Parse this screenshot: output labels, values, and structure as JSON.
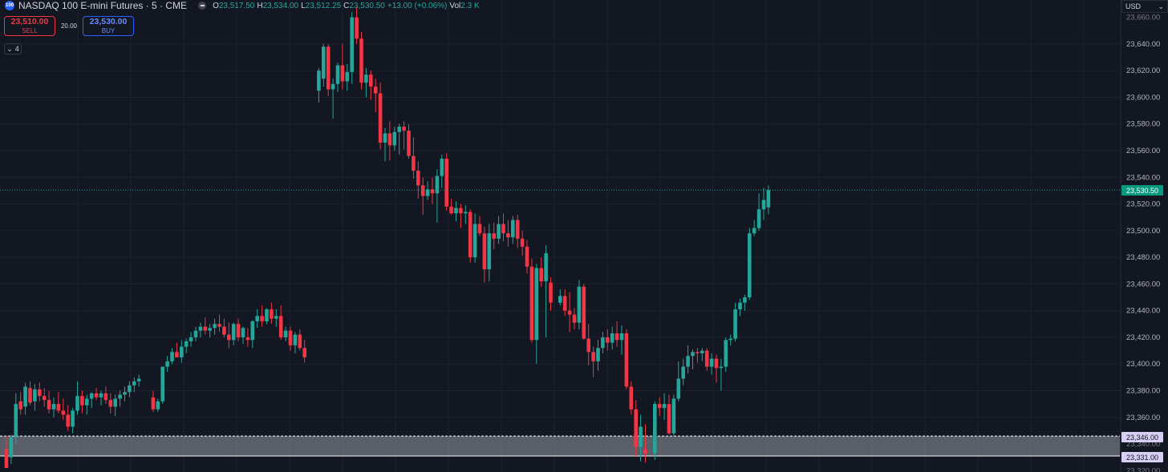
{
  "header": {
    "symbol_badge": "100",
    "title": "NASDAQ 100 E-mini Futures · 5 · CME",
    "ohlc": [
      {
        "k": "O",
        "v": "23,517.50"
      },
      {
        "k": "H",
        "v": "23,534.00"
      },
      {
        "k": "L",
        "v": "23,512.25"
      },
      {
        "k": "C",
        "v": "23,530.50"
      },
      {
        "k": "",
        "v": "+13.00 (+0.06%)"
      },
      {
        "k": "Vol",
        "v": "2.3 K"
      }
    ]
  },
  "trade": {
    "sell_price": "23,510.00",
    "sell_label": "SELL",
    "spread": "20.00",
    "buy_price": "23,530.00",
    "buy_label": "BUY"
  },
  "indicators_toggle": "4",
  "currency": "USD",
  "price_tags": {
    "last": "23,530.50",
    "level_a": "23,346.00",
    "level_b": "23,331.00"
  },
  "colors": {
    "background": "#131722",
    "up": "#26a69a",
    "down": "#f23645",
    "grid": "#1e222d",
    "zone": "#b2b5be"
  },
  "chart_data": {
    "type": "candlestick",
    "y_axis": {
      "ticks": [
        23640,
        23620,
        23600,
        23580,
        23560,
        23540,
        23520,
        23500,
        23480,
        23460,
        23440,
        23420,
        23400,
        23380,
        23360
      ],
      "tick_labels": [
        "23,640.00",
        "23,620.00",
        "23,600.00",
        "23,580.00",
        "23,560.00",
        "23,540.00",
        "23,520.00",
        "23,500.00",
        "23,480.00",
        "23,460.00",
        "23,440.00",
        "23,420.00",
        "23,400.00",
        "23,380.00",
        "23,360.00"
      ],
      "partial_labels": [
        "23,660.00",
        "23,340.00",
        "23,320.00"
      ],
      "range": [
        23319,
        23673
      ]
    },
    "last_price": 23530.5,
    "zone": {
      "from": 23331,
      "to": 23346
    },
    "candles": [
      {
        "o": 23336,
        "h": 23346,
        "l": 23322,
        "c": 23322
      },
      {
        "o": 23330,
        "h": 23347,
        "l": 23325,
        "c": 23345
      },
      {
        "o": 23345,
        "h": 23378,
        "l": 23340,
        "c": 23370
      },
      {
        "o": 23372,
        "h": 23379,
        "l": 23362,
        "c": 23366
      },
      {
        "o": 23368,
        "h": 23386,
        "l": 23362,
        "c": 23383
      },
      {
        "o": 23382,
        "h": 23387,
        "l": 23369,
        "c": 23371
      },
      {
        "o": 23372,
        "h": 23385,
        "l": 23365,
        "c": 23381
      },
      {
        "o": 23381,
        "h": 23386,
        "l": 23372,
        "c": 23376
      },
      {
        "o": 23376,
        "h": 23382,
        "l": 23368,
        "c": 23373
      },
      {
        "o": 23373,
        "h": 23380,
        "l": 23363,
        "c": 23366
      },
      {
        "o": 23366,
        "h": 23375,
        "l": 23360,
        "c": 23370
      },
      {
        "o": 23370,
        "h": 23379,
        "l": 23363,
        "c": 23365
      },
      {
        "o": 23365,
        "h": 23374,
        "l": 23358,
        "c": 23362
      },
      {
        "o": 23362,
        "h": 23369,
        "l": 23350,
        "c": 23353
      },
      {
        "o": 23353,
        "h": 23367,
        "l": 23348,
        "c": 23365
      },
      {
        "o": 23365,
        "h": 23387,
        "l": 23362,
        "c": 23376
      },
      {
        "o": 23376,
        "h": 23380,
        "l": 23363,
        "c": 23369
      },
      {
        "o": 23369,
        "h": 23377,
        "l": 23362,
        "c": 23374
      },
      {
        "o": 23374,
        "h": 23379,
        "l": 23367,
        "c": 23378
      },
      {
        "o": 23378,
        "h": 23382,
        "l": 23373,
        "c": 23375
      },
      {
        "o": 23375,
        "h": 23380,
        "l": 23369,
        "c": 23378
      },
      {
        "o": 23378,
        "h": 23383,
        "l": 23370,
        "c": 23373
      },
      {
        "o": 23373,
        "h": 23378,
        "l": 23363,
        "c": 23368
      },
      {
        "o": 23368,
        "h": 23377,
        "l": 23361,
        "c": 23374
      },
      {
        "o": 23374,
        "h": 23380,
        "l": 23368,
        "c": 23377
      },
      {
        "o": 23377,
        "h": 23383,
        "l": 23372,
        "c": 23379
      },
      {
        "o": 23379,
        "h": 23387,
        "l": 23375,
        "c": 23384
      },
      {
        "o": 23384,
        "h": 23390,
        "l": 23379,
        "c": 23387
      },
      {
        "o": 23387,
        "h": 23392,
        "l": 23383,
        "c": 23389
      },
      {
        "o": 23375,
        "h": 23380,
        "l": 23364,
        "c": 23366
      },
      {
        "o": 23366,
        "h": 23374,
        "l": 23364,
        "c": 23372
      },
      {
        "o": 23372,
        "h": 23398,
        "l": 23370,
        "c": 23398
      },
      {
        "o": 23398,
        "h": 23406,
        "l": 23394,
        "c": 23402
      },
      {
        "o": 23402,
        "h": 23412,
        "l": 23400,
        "c": 23409
      },
      {
        "o": 23409,
        "h": 23416,
        "l": 23405,
        "c": 23405
      },
      {
        "o": 23405,
        "h": 23418,
        "l": 23401,
        "c": 23413
      },
      {
        "o": 23413,
        "h": 23419,
        "l": 23408,
        "c": 23417
      },
      {
        "o": 23417,
        "h": 23424,
        "l": 23413,
        "c": 23420
      },
      {
        "o": 23420,
        "h": 23428,
        "l": 23417,
        "c": 23425
      },
      {
        "o": 23425,
        "h": 23431,
        "l": 23420,
        "c": 23428
      },
      {
        "o": 23428,
        "h": 23435,
        "l": 23422,
        "c": 23425
      },
      {
        "o": 23425,
        "h": 23430,
        "l": 23420,
        "c": 23427
      },
      {
        "o": 23427,
        "h": 23434,
        "l": 23422,
        "c": 23430
      },
      {
        "o": 23430,
        "h": 23437,
        "l": 23424,
        "c": 23428
      },
      {
        "o": 23428,
        "h": 23434,
        "l": 23420,
        "c": 23422
      },
      {
        "o": 23422,
        "h": 23431,
        "l": 23412,
        "c": 23418
      },
      {
        "o": 23418,
        "h": 23431,
        "l": 23414,
        "c": 23430
      },
      {
        "o": 23430,
        "h": 23434,
        "l": 23417,
        "c": 23420
      },
      {
        "o": 23420,
        "h": 23428,
        "l": 23415,
        "c": 23427
      },
      {
        "o": 23420,
        "h": 23427,
        "l": 23413,
        "c": 23418
      },
      {
        "o": 23418,
        "h": 23433,
        "l": 23412,
        "c": 23432
      },
      {
        "o": 23432,
        "h": 23441,
        "l": 23427,
        "c": 23436
      },
      {
        "o": 23436,
        "h": 23444,
        "l": 23428,
        "c": 23432
      },
      {
        "o": 23432,
        "h": 23442,
        "l": 23430,
        "c": 23441
      },
      {
        "o": 23441,
        "h": 23446,
        "l": 23430,
        "c": 23434
      },
      {
        "o": 23434,
        "h": 23441,
        "l": 23428,
        "c": 23436
      },
      {
        "o": 23436,
        "h": 23444,
        "l": 23418,
        "c": 23420
      },
      {
        "o": 23420,
        "h": 23428,
        "l": 23417,
        "c": 23425
      },
      {
        "o": 23425,
        "h": 23428,
        "l": 23410,
        "c": 23414
      },
      {
        "o": 23414,
        "h": 23424,
        "l": 23408,
        "c": 23422
      },
      {
        "o": 23422,
        "h": 23426,
        "l": 23410,
        "c": 23412
      },
      {
        "o": 23412,
        "h": 23418,
        "l": 23401,
        "c": 23405
      },
      {
        "o": 23605,
        "h": 23622,
        "l": 23596,
        "c": 23620
      },
      {
        "o": 23614,
        "h": 23640,
        "l": 23608,
        "c": 23638
      },
      {
        "o": 23638,
        "h": 23640,
        "l": 23601,
        "c": 23606
      },
      {
        "o": 23606,
        "h": 23614,
        "l": 23584,
        "c": 23610
      },
      {
        "o": 23610,
        "h": 23626,
        "l": 23604,
        "c": 23624
      },
      {
        "o": 23624,
        "h": 23640,
        "l": 23606,
        "c": 23612
      },
      {
        "o": 23612,
        "h": 23625,
        "l": 23605,
        "c": 23619
      },
      {
        "o": 23619,
        "h": 23664,
        "l": 23610,
        "c": 23660
      },
      {
        "o": 23660,
        "h": 23668,
        "l": 23640,
        "c": 23644
      },
      {
        "o": 23644,
        "h": 23649,
        "l": 23606,
        "c": 23611
      },
      {
        "o": 23611,
        "h": 23622,
        "l": 23600,
        "c": 23617
      },
      {
        "o": 23617,
        "h": 23620,
        "l": 23598,
        "c": 23608
      },
      {
        "o": 23608,
        "h": 23614,
        "l": 23589,
        "c": 23603
      },
      {
        "o": 23603,
        "h": 23611,
        "l": 23561,
        "c": 23566
      },
      {
        "o": 23566,
        "h": 23577,
        "l": 23552,
        "c": 23573
      },
      {
        "o": 23573,
        "h": 23582,
        "l": 23553,
        "c": 23564
      },
      {
        "o": 23564,
        "h": 23578,
        "l": 23560,
        "c": 23574
      },
      {
        "o": 23574,
        "h": 23580,
        "l": 23557,
        "c": 23578
      },
      {
        "o": 23578,
        "h": 23582,
        "l": 23561,
        "c": 23575
      },
      {
        "o": 23575,
        "h": 23580,
        "l": 23554,
        "c": 23556
      },
      {
        "o": 23556,
        "h": 23570,
        "l": 23539,
        "c": 23545
      },
      {
        "o": 23545,
        "h": 23552,
        "l": 23524,
        "c": 23534
      },
      {
        "o": 23534,
        "h": 23540,
        "l": 23512,
        "c": 23526
      },
      {
        "o": 23526,
        "h": 23537,
        "l": 23523,
        "c": 23531
      },
      {
        "o": 23531,
        "h": 23540,
        "l": 23520,
        "c": 23528
      },
      {
        "o": 23528,
        "h": 23546,
        "l": 23506,
        "c": 23541
      },
      {
        "o": 23541,
        "h": 23557,
        "l": 23532,
        "c": 23554
      },
      {
        "o": 23554,
        "h": 23558,
        "l": 23515,
        "c": 23518
      },
      {
        "o": 23518,
        "h": 23524,
        "l": 23512,
        "c": 23513
      },
      {
        "o": 23513,
        "h": 23522,
        "l": 23507,
        "c": 23517
      },
      {
        "o": 23517,
        "h": 23520,
        "l": 23502,
        "c": 23513
      },
      {
        "o": 23513,
        "h": 23519,
        "l": 23505,
        "c": 23514
      },
      {
        "o": 23514,
        "h": 23516,
        "l": 23476,
        "c": 23480
      },
      {
        "o": 23480,
        "h": 23513,
        "l": 23476,
        "c": 23505
      },
      {
        "o": 23505,
        "h": 23511,
        "l": 23496,
        "c": 23498
      },
      {
        "o": 23498,
        "h": 23503,
        "l": 23461,
        "c": 23471
      },
      {
        "o": 23471,
        "h": 23505,
        "l": 23462,
        "c": 23498
      },
      {
        "o": 23498,
        "h": 23506,
        "l": 23486,
        "c": 23494
      },
      {
        "o": 23494,
        "h": 23511,
        "l": 23490,
        "c": 23505
      },
      {
        "o": 23505,
        "h": 23513,
        "l": 23492,
        "c": 23498
      },
      {
        "o": 23498,
        "h": 23508,
        "l": 23488,
        "c": 23495
      },
      {
        "o": 23495,
        "h": 23511,
        "l": 23490,
        "c": 23508
      },
      {
        "o": 23508,
        "h": 23512,
        "l": 23487,
        "c": 23494
      },
      {
        "o": 23494,
        "h": 23500,
        "l": 23481,
        "c": 23488
      },
      {
        "o": 23488,
        "h": 23493,
        "l": 23468,
        "c": 23473
      },
      {
        "o": 23473,
        "h": 23479,
        "l": 23416,
        "c": 23418
      },
      {
        "o": 23418,
        "h": 23475,
        "l": 23400,
        "c": 23472
      },
      {
        "o": 23472,
        "h": 23480,
        "l": 23458,
        "c": 23462
      },
      {
        "o": 23462,
        "h": 23489,
        "l": 23420,
        "c": 23483
      },
      {
        "o": 23461,
        "h": 23465,
        "l": 23440,
        "c": 23446
      },
      {
        "o": 23446,
        "h": 23456,
        "l": 23444,
        "c": 23451
      },
      {
        "o": 23451,
        "h": 23456,
        "l": 23436,
        "c": 23440
      },
      {
        "o": 23440,
        "h": 23454,
        "l": 23424,
        "c": 23437
      },
      {
        "o": 23437,
        "h": 23442,
        "l": 23426,
        "c": 23431
      },
      {
        "o": 23431,
        "h": 23463,
        "l": 23426,
        "c": 23458
      },
      {
        "o": 23458,
        "h": 23460,
        "l": 23418,
        "c": 23419
      },
      {
        "o": 23419,
        "h": 23430,
        "l": 23399,
        "c": 23409
      },
      {
        "o": 23409,
        "h": 23413,
        "l": 23390,
        "c": 23402
      },
      {
        "o": 23402,
        "h": 23418,
        "l": 23395,
        "c": 23412
      },
      {
        "o": 23412,
        "h": 23424,
        "l": 23408,
        "c": 23420
      },
      {
        "o": 23420,
        "h": 23426,
        "l": 23410,
        "c": 23416
      },
      {
        "o": 23416,
        "h": 23428,
        "l": 23411,
        "c": 23423
      },
      {
        "o": 23423,
        "h": 23432,
        "l": 23413,
        "c": 23418
      },
      {
        "o": 23418,
        "h": 23429,
        "l": 23407,
        "c": 23423
      },
      {
        "o": 23423,
        "h": 23426,
        "l": 23381,
        "c": 23383
      },
      {
        "o": 23383,
        "h": 23387,
        "l": 23362,
        "c": 23366
      },
      {
        "o": 23366,
        "h": 23373,
        "l": 23331,
        "c": 23338
      },
      {
        "o": 23338,
        "h": 23362,
        "l": 23327,
        "c": 23353
      },
      {
        "o": 23336,
        "h": 23355,
        "l": 23326,
        "c": 23333
      },
      {
        "o": 23333,
        "h": 23372,
        "l": 23328,
        "c": 23370
      },
      {
        "o": 23370,
        "h": 23375,
        "l": 23361,
        "c": 23367
      },
      {
        "o": 23367,
        "h": 23378,
        "l": 23358,
        "c": 23370
      },
      {
        "o": 23370,
        "h": 23377,
        "l": 23347,
        "c": 23348
      },
      {
        "o": 23348,
        "h": 23377,
        "l": 23346,
        "c": 23374
      },
      {
        "o": 23374,
        "h": 23402,
        "l": 23372,
        "c": 23389
      },
      {
        "o": 23389,
        "h": 23404,
        "l": 23384,
        "c": 23398
      },
      {
        "o": 23398,
        "h": 23414,
        "l": 23393,
        "c": 23406
      },
      {
        "o": 23406,
        "h": 23411,
        "l": 23396,
        "c": 23409
      },
      {
        "o": 23409,
        "h": 23412,
        "l": 23401,
        "c": 23408
      },
      {
        "o": 23408,
        "h": 23412,
        "l": 23402,
        "c": 23410
      },
      {
        "o": 23410,
        "h": 23412,
        "l": 23395,
        "c": 23398
      },
      {
        "o": 23398,
        "h": 23408,
        "l": 23392,
        "c": 23404
      },
      {
        "o": 23404,
        "h": 23407,
        "l": 23386,
        "c": 23397
      },
      {
        "o": 23397,
        "h": 23404,
        "l": 23380,
        "c": 23398
      },
      {
        "o": 23398,
        "h": 23420,
        "l": 23394,
        "c": 23418
      },
      {
        "o": 23418,
        "h": 23422,
        "l": 23414,
        "c": 23419
      },
      {
        "o": 23419,
        "h": 23446,
        "l": 23417,
        "c": 23441
      },
      {
        "o": 23441,
        "h": 23449,
        "l": 23436,
        "c": 23446
      },
      {
        "o": 23446,
        "h": 23452,
        "l": 23440,
        "c": 23450
      },
      {
        "o": 23450,
        "h": 23502,
        "l": 23448,
        "c": 23498
      },
      {
        "o": 23498,
        "h": 23508,
        "l": 23496,
        "c": 23502
      },
      {
        "o": 23502,
        "h": 23528,
        "l": 23500,
        "c": 23516
      },
      {
        "o": 23516,
        "h": 23532,
        "l": 23508,
        "c": 23523
      },
      {
        "o": 23517.5,
        "h": 23534,
        "l": 23512.25,
        "c": 23530.5
      }
    ]
  }
}
